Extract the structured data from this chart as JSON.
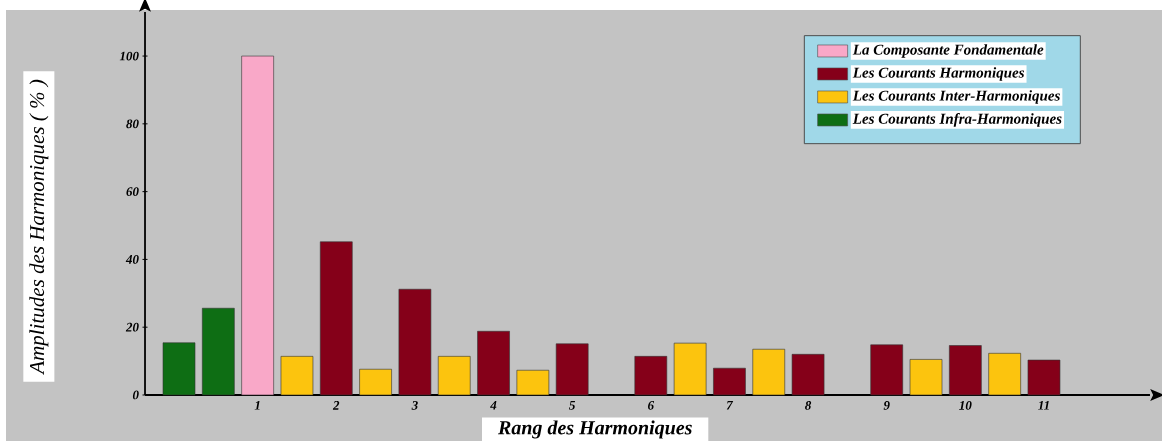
{
  "chart_data": {
    "type": "bar",
    "xlabel": "Rang  des Harmoniques",
    "ylabel": "Amplitudes des Harmoniques ( % )",
    "categories": [
      null,
      null,
      "1",
      null,
      "2",
      null,
      "3",
      null,
      "4",
      null,
      "5",
      null,
      "6",
      null,
      "7",
      null,
      "8",
      null,
      "9",
      null,
      "10",
      null,
      "11"
    ],
    "series": [
      {
        "name": "La Composante Fondamentale",
        "color": "#f9a8c8",
        "values": [
          null,
          null,
          100,
          null,
          null,
          null,
          null,
          null,
          null,
          null,
          null,
          null,
          null,
          null,
          null,
          null,
          null,
          null,
          null,
          null,
          null,
          null,
          null
        ]
      },
      {
        "name": "Les Courants Harmoniques",
        "color": "#850019",
        "values": [
          null,
          null,
          null,
          null,
          45.2,
          null,
          31.2,
          null,
          18.8,
          null,
          15.1,
          null,
          11.4,
          null,
          7.9,
          null,
          12.0,
          null,
          14.8,
          null,
          14.6,
          null,
          10.3
        ]
      },
      {
        "name": "Les Courants Inter-Harmoniques",
        "color": "#fcc40e",
        "values": [
          null,
          null,
          null,
          11.4,
          null,
          7.6,
          null,
          11.4,
          null,
          7.3,
          null,
          null,
          null,
          15.3,
          null,
          13.5,
          null,
          null,
          null,
          10.5,
          null,
          12.3,
          null
        ]
      },
      {
        "name": "Les Courants Infra-Harmoniques",
        "color": "#0e6e14",
        "values": [
          15.4,
          25.6,
          null,
          null,
          null,
          null,
          null,
          null,
          null,
          null,
          null,
          null,
          null,
          null,
          null,
          null,
          null,
          null,
          null,
          null,
          null,
          null,
          null
        ]
      }
    ],
    "ylim": [
      0,
      113
    ],
    "yticks": [
      0,
      20,
      40,
      60,
      80,
      100
    ],
    "legend": "top right"
  }
}
